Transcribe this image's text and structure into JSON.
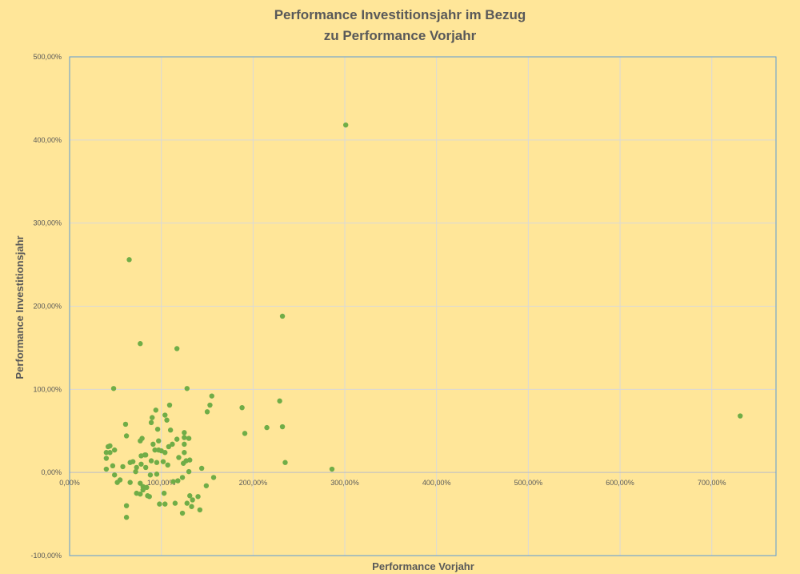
{
  "chart_data": {
    "type": "scatter",
    "title_lines": [
      "Performance Investitionsjahr im Bezug",
      "zu Performance Vorjahr"
    ],
    "xlabel": "Performance Vorjahr",
    "ylabel": "Performance Investitionsjahr",
    "xlim": [
      0,
      770
    ],
    "ylim": [
      -100,
      500
    ],
    "x_ticks": [
      0,
      100,
      200,
      300,
      400,
      500,
      600,
      700
    ],
    "x_tick_labels": [
      "0,00%",
      "100,00%",
      "200,00%",
      "300,00%",
      "400,00%",
      "500,00%",
      "600,00%",
      "700,00%"
    ],
    "y_ticks": [
      -100,
      0,
      100,
      200,
      300,
      400,
      500
    ],
    "y_tick_labels": [
      "-100,00%",
      "0,00%",
      "100,00%",
      "200,00%",
      "300,00%",
      "400,00%",
      "500,00%"
    ],
    "grid": true,
    "legend": "none",
    "colors": {
      "background": "#FFE699",
      "marker": "#70AD47",
      "grid": "#D9D9D9",
      "plot_border": "#5B9BD5",
      "text": "#595959"
    },
    "series": [
      {
        "points": [
          [
            301,
            418
          ],
          [
            65,
            256
          ],
          [
            77,
            155
          ],
          [
            117,
            149
          ],
          [
            232,
            188
          ],
          [
            48,
            101
          ],
          [
            128,
            101
          ],
          [
            155,
            92
          ],
          [
            229,
            86
          ],
          [
            153,
            81
          ],
          [
            188,
            78
          ],
          [
            94,
            75
          ],
          [
            150,
            73
          ],
          [
            731,
            68
          ],
          [
            109,
            81
          ],
          [
            90,
            66
          ],
          [
            104,
            69
          ],
          [
            106,
            63
          ],
          [
            232,
            55
          ],
          [
            215,
            54
          ],
          [
            191,
            47
          ],
          [
            61,
            58
          ],
          [
            110,
            51
          ],
          [
            125,
            48
          ],
          [
            96,
            52
          ],
          [
            89,
            60
          ],
          [
            62,
            44
          ],
          [
            130,
            41
          ],
          [
            125,
            42
          ],
          [
            117,
            40
          ],
          [
            79,
            41
          ],
          [
            77,
            38
          ],
          [
            108,
            31
          ],
          [
            97,
            38
          ],
          [
            112,
            34
          ],
          [
            125,
            34
          ],
          [
            93,
            27
          ],
          [
            91,
            34
          ],
          [
            44,
            32
          ],
          [
            42,
            31
          ],
          [
            49,
            27
          ],
          [
            40,
            24
          ],
          [
            97,
            27
          ],
          [
            100,
            26
          ],
          [
            104,
            24
          ],
          [
            125,
            24
          ],
          [
            44,
            24
          ],
          [
            82,
            21
          ],
          [
            83,
            21
          ],
          [
            78,
            20
          ],
          [
            119,
            18
          ],
          [
            40,
            17
          ],
          [
            131,
            15
          ],
          [
            127,
            14
          ],
          [
            124,
            11
          ],
          [
            89,
            14
          ],
          [
            102,
            13
          ],
          [
            107,
            9
          ],
          [
            69,
            13
          ],
          [
            66,
            12
          ],
          [
            95,
            12
          ],
          [
            78,
            10
          ],
          [
            58,
            7
          ],
          [
            144,
            5
          ],
          [
            47,
            8
          ],
          [
            40,
            4
          ],
          [
            235,
            12
          ],
          [
            286,
            4
          ],
          [
            73,
            6
          ],
          [
            83,
            6
          ],
          [
            130,
            1
          ],
          [
            72,
            1
          ],
          [
            95,
            -2
          ],
          [
            49,
            -3
          ],
          [
            88,
            -3
          ],
          [
            123,
            -6
          ],
          [
            157,
            -6
          ],
          [
            55,
            -9
          ],
          [
            52,
            -12
          ],
          [
            77,
            -13
          ],
          [
            113,
            -11
          ],
          [
            118,
            -10
          ],
          [
            80,
            -17
          ],
          [
            84,
            -18
          ],
          [
            149,
            -16
          ],
          [
            66,
            -12
          ],
          [
            80,
            -21
          ],
          [
            103,
            -25
          ],
          [
            73,
            -25
          ],
          [
            77,
            -26
          ],
          [
            85,
            -28
          ],
          [
            87,
            -29
          ],
          [
            131,
            -28
          ],
          [
            134,
            -33
          ],
          [
            140,
            -29
          ],
          [
            115,
            -37
          ],
          [
            98,
            -38
          ],
          [
            104,
            -38
          ],
          [
            128,
            -37
          ],
          [
            62,
            -40
          ],
          [
            133,
            -41
          ],
          [
            142,
            -45
          ],
          [
            123,
            -49
          ],
          [
            62,
            -54
          ]
        ]
      }
    ]
  }
}
